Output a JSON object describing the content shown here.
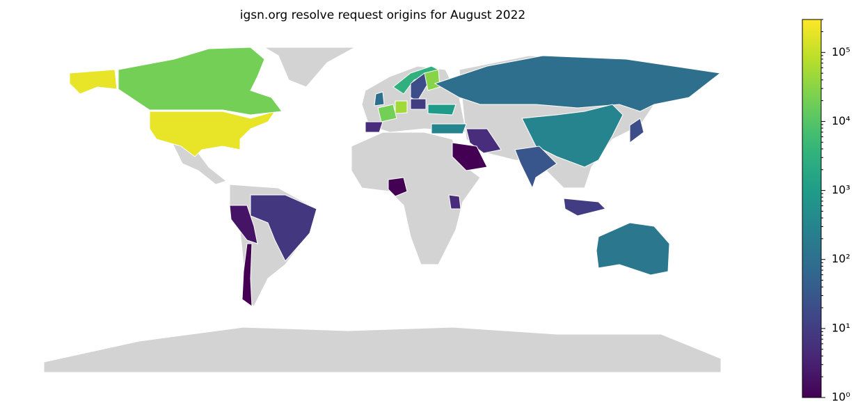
{
  "chart_data": {
    "type": "choropleth",
    "title": "igsn.org resolve request origins for August 2022",
    "values": [
      200000,
      200000,
      20000,
      3000,
      20,
      30000,
      100,
      50000,
      20000,
      5,
      10,
      1000,
      300,
      100,
      300,
      30,
      5,
      1,
      20,
      10,
      150,
      8,
      2,
      1,
      1,
      5
    ],
    "log_scale": true,
    "clim": [
      1,
      300000
    ],
    "cticks": [
      {
        "value": 1,
        "label": "10⁰"
      },
      {
        "value": 10,
        "label": "10¹"
      },
      {
        "value": 100,
        "label": "10²"
      },
      {
        "value": 1000,
        "label": "10³"
      },
      {
        "value": 10000,
        "label": "10⁴"
      },
      {
        "value": 100000,
        "label": "10⁵"
      }
    ],
    "colormap": "viridis",
    "missing_color": "#d3d3d3"
  }
}
